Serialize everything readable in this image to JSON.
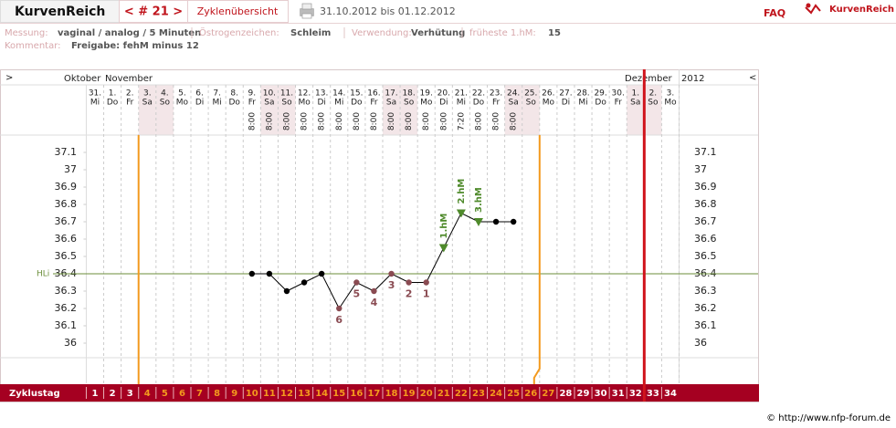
{
  "header": {
    "title": "KurvenReich",
    "cycle_nav": "< # 21 >",
    "overview": "Zyklenübersicht",
    "date_range": "31.10.2012 bis 01.12.2012",
    "faq": "FAQ",
    "logo": "KurvenReich"
  },
  "info": [
    [
      {
        "label": "Messung:",
        "value": "vaginal / analog / 5 Minuten"
      },
      {
        "label": "Östrogenzeichen:",
        "value": "Schleim"
      },
      {
        "label": "Verwendung:",
        "value": "Verhütung"
      },
      {
        "label": "früheste 1.hM:",
        "value": 15
      }
    ],
    [
      {
        "label": "Kommentar:",
        "value": "Freigabe: fehM minus 12"
      }
    ]
  ],
  "footer": "© http://www.nfp-forum.de",
  "chart_data": {
    "type": "line",
    "nav_left": ">",
    "nav_right": "<",
    "months": [
      "Oktober",
      "November",
      "Dezember"
    ],
    "year": "2012",
    "categories": [
      "31.",
      "1.",
      "2.",
      "3.",
      "4.",
      "5.",
      "6.",
      "7.",
      "8.",
      "9.",
      "10.",
      "11.",
      "12.",
      "13.",
      "14.",
      "15.",
      "16.",
      "17.",
      "18.",
      "19.",
      "20.",
      "21.",
      "22.",
      "23.",
      "24.",
      "25.",
      "26.",
      "27.",
      "28.",
      "29.",
      "30.",
      "1.",
      "2.",
      "3."
    ],
    "weekdays": [
      "Mi",
      "Do",
      "Fr",
      "Sa",
      "So",
      "Mo",
      "Di",
      "Mi",
      "Do",
      "Fr",
      "Sa",
      "So",
      "Mo",
      "Di",
      "Mi",
      "Do",
      "Fr",
      "Sa",
      "So",
      "Mo",
      "Di",
      "Mi",
      "Do",
      "Fr",
      "Sa",
      "So",
      "Mo",
      "Di",
      "Mi",
      "Do",
      "Fr",
      "Sa",
      "So",
      "Mo"
    ],
    "shaded": [
      false,
      false,
      false,
      true,
      true,
      false,
      false,
      false,
      false,
      false,
      true,
      true,
      false,
      false,
      false,
      false,
      false,
      true,
      true,
      false,
      false,
      false,
      false,
      false,
      true,
      true,
      false,
      false,
      false,
      false,
      false,
      true,
      true,
      false
    ],
    "times": [
      null,
      null,
      null,
      null,
      null,
      null,
      null,
      null,
      null,
      "8:00",
      "8:00",
      "8:00",
      "8:00",
      "8:00",
      "8:00",
      "8:00",
      "8:00",
      "8:00",
      "8:00",
      "8:00",
      "8:00",
      "7:20",
      "8:00",
      "8:00",
      "8:00",
      null,
      null,
      null,
      null,
      null,
      null,
      null,
      null,
      null
    ],
    "cycle_label": "Zyklustag",
    "cycle_days": [
      1,
      2,
      3,
      4,
      5,
      6,
      7,
      8,
      9,
      10,
      11,
      12,
      13,
      14,
      15,
      16,
      17,
      18,
      19,
      20,
      21,
      22,
      23,
      24,
      25,
      26,
      27,
      28,
      29,
      30,
      31,
      32,
      33,
      34
    ],
    "series": [
      {
        "color": "#000000",
        "values": [
          null,
          null,
          null,
          null,
          null,
          null,
          null,
          null,
          null,
          36.4,
          36.4,
          36.3,
          36.35,
          36.4,
          36.2,
          36.35,
          36.3,
          36.4,
          36.35,
          36.35,
          36.55,
          36.75,
          36.7,
          36.7,
          36.7,
          null,
          null,
          null,
          null,
          null,
          null,
          null,
          null,
          null
        ]
      }
    ],
    "low_labels": [
      null,
      null,
      null,
      null,
      null,
      null,
      null,
      null,
      null,
      null,
      null,
      null,
      null,
      null,
      6,
      5,
      4,
      3,
      2,
      1,
      null,
      null,
      null,
      null,
      null,
      null,
      null,
      null,
      null,
      null,
      null,
      null,
      null,
      null
    ],
    "low_color": "#8a4b52",
    "hm_labels": [
      null,
      null,
      null,
      null,
      null,
      null,
      null,
      null,
      null,
      null,
      null,
      null,
      null,
      null,
      null,
      null,
      null,
      null,
      null,
      null,
      "1.hM",
      "2.hM",
      "3.hM",
      null,
      null,
      null,
      null,
      null,
      null,
      null,
      null,
      null,
      null,
      null
    ],
    "hm_color": "#4f8a2b",
    "cover_line": 36.4,
    "cover_line_label": "HLi",
    "cover_line_color": "#6b8e3a",
    "fertile_window": {
      "first_cycle_day": 4,
      "last_cycle_day": 27,
      "color": "#f39a1e"
    },
    "current_cycle_day": 32,
    "current_color": "#d0141c",
    "ylim": [
      35.9,
      37.2
    ],
    "yticks": [
      36,
      36.1,
      36.2,
      36.3,
      36.4,
      36.5,
      36.6,
      36.7,
      36.8,
      36.9,
      37,
      37.1
    ]
  }
}
